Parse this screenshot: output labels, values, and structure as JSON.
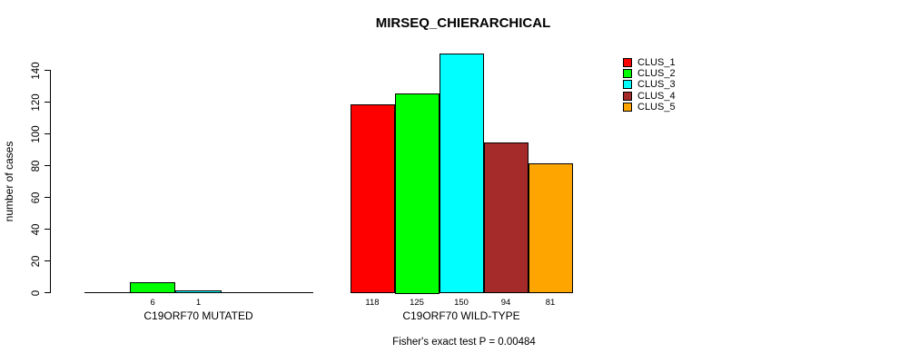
{
  "chart_data": {
    "type": "bar",
    "title": "MIRSEQ_CHIERARCHICAL",
    "ylabel": "number of cases",
    "xlabel": "",
    "footnote": "Fisher's exact test P = 0.00484",
    "ylim": [
      0,
      150
    ],
    "yticks": [
      0,
      20,
      40,
      60,
      80,
      100,
      120,
      140
    ],
    "grid": false,
    "legend_position": "top-right",
    "categories": [
      "C19ORF70 MUTATED",
      "C19ORF70 WILD-TYPE"
    ],
    "series": [
      {
        "name": "CLUS_1",
        "color": "#FF0000",
        "values": [
          0,
          118
        ]
      },
      {
        "name": "CLUS_2",
        "color": "#00FF00",
        "values": [
          6,
          125
        ]
      },
      {
        "name": "CLUS_3",
        "color": "#00FFFF",
        "values": [
          1,
          150
        ]
      },
      {
        "name": "CLUS_4",
        "color": "#A52A2A",
        "values": [
          0,
          94
        ]
      },
      {
        "name": "CLUS_5",
        "color": "#FFA500",
        "values": [
          0,
          81
        ]
      }
    ],
    "shown_bar_labels": [
      [
        "",
        "6",
        "1",
        "",
        ""
      ],
      [
        "118",
        "125",
        "150",
        "94",
        "81"
      ]
    ],
    "axis_color": "#000000",
    "background_color": "#ffffff"
  }
}
